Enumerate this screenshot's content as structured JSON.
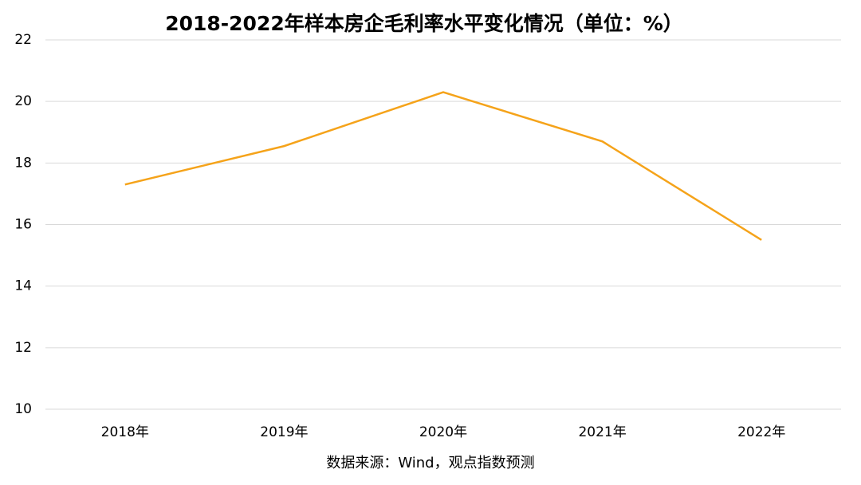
{
  "chart_data": {
    "type": "line",
    "title": "2018-2022年样本房企毛利率水平变化情况（单位：%）",
    "source": "数据来源：Wind，观点指数预测",
    "categories": [
      "2018年",
      "2019年",
      "2020年",
      "2021年",
      "2022年"
    ],
    "series": [
      {
        "name": "毛利率",
        "color": "#f5a31a",
        "values": [
          17.3,
          18.55,
          20.3,
          18.7,
          15.5
        ]
      }
    ],
    "ylim": [
      10,
      22
    ],
    "yticks": [
      10,
      12,
      14,
      16,
      18,
      20,
      22
    ],
    "grid": true
  }
}
